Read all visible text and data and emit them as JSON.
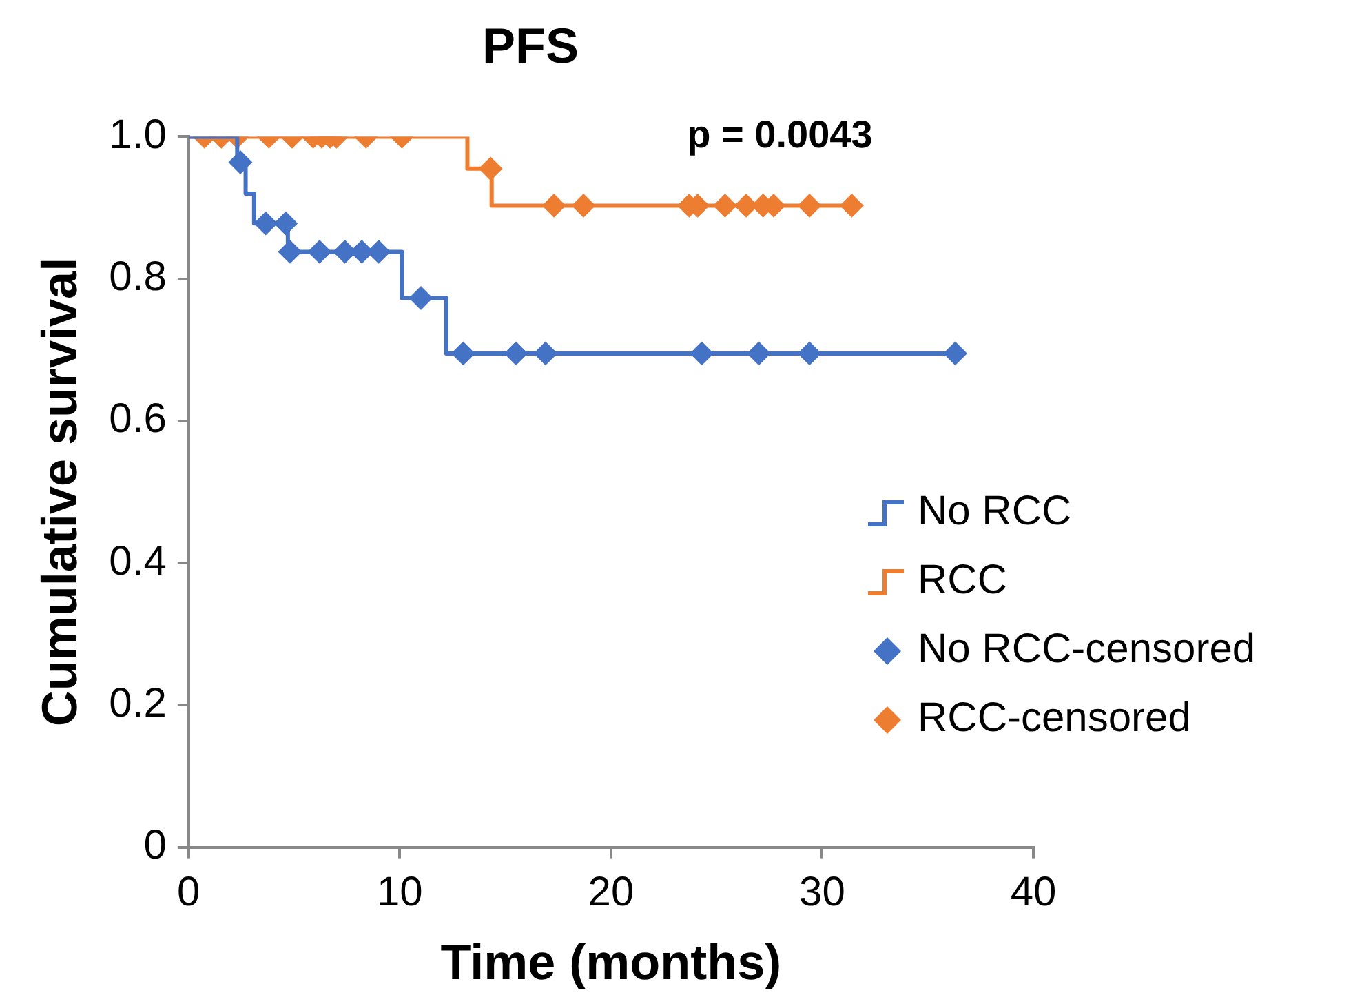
{
  "chart_data": {
    "type": "step",
    "title": "PFS",
    "xlabel": "Time (months)",
    "ylabel": "Cumulative survival",
    "annotations": [
      "p = 0.0043"
    ],
    "xlim": [
      0,
      40
    ],
    "xticks": [
      0,
      10,
      20,
      30,
      40
    ],
    "ylim": [
      0,
      1
    ],
    "yticks": [
      0,
      0.2,
      0.4,
      0.6,
      0.8,
      {
        "value": 1,
        "label": "1.0"
      }
    ],
    "grid": false,
    "legend": "right",
    "series": [
      {
        "name": "No RCC",
        "color": "#4472c4",
        "x": [
          0,
          2.3,
          2.7,
          3.1,
          4.7,
          10.1,
          12.2,
          36.3
        ],
        "values": [
          1,
          0.964,
          0.92,
          0.878,
          0.838,
          0.773,
          0.695,
          0.695
        ]
      },
      {
        "name": "RCC",
        "color": "#ed7d31",
        "x": [
          0,
          13.2,
          14.35,
          31.4
        ],
        "values": [
          1,
          0.955,
          0.903,
          0.903
        ]
      },
      {
        "name": "No RCC-censored",
        "type": "scatter",
        "marker": "diamond",
        "color": "#4472c4",
        "x": [
          2.45,
          3.65,
          4.6,
          4.8,
          6.2,
          7.4,
          8.2,
          9.0,
          11.0,
          13.0,
          15.5,
          16.9,
          24.3,
          27.0,
          29.4,
          36.3
        ],
        "values": [
          0.964,
          0.878,
          0.878,
          0.838,
          0.838,
          0.838,
          0.838,
          0.838,
          0.773,
          0.695,
          0.695,
          0.695,
          0.695,
          0.695,
          0.695,
          0.695
        ]
      },
      {
        "name": "RCC-censored",
        "type": "scatter",
        "marker": "diamond",
        "color": "#ed7d31",
        "x": [
          0.75,
          1.55,
          2.3,
          3.8,
          4.9,
          5.9,
          6.3,
          6.7,
          7.0,
          8.4,
          10.1,
          14.3,
          17.3,
          18.7,
          23.7,
          24.1,
          25.4,
          26.4,
          27.2,
          27.7,
          29.4,
          31.4
        ],
        "values": [
          1,
          1,
          1,
          1,
          1,
          1,
          1,
          1,
          1,
          1,
          1,
          0.955,
          0.903,
          0.903,
          0.903,
          0.903,
          0.903,
          0.903,
          0.903,
          0.903,
          0.903,
          0.903
        ]
      }
    ]
  }
}
